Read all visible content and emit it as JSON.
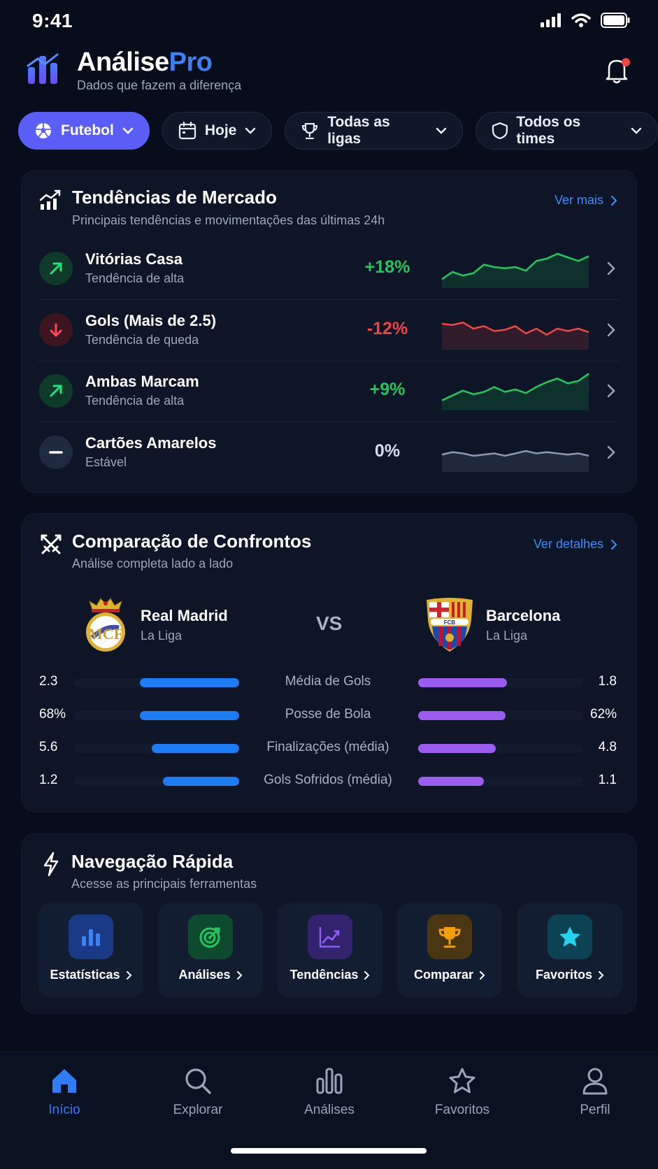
{
  "status_bar": {
    "time": "9:41"
  },
  "header": {
    "brand_main": "Análise",
    "brand_accent": "Pro",
    "tagline": "Dados que fazem a diferença"
  },
  "filters": [
    {
      "label": "Futebol",
      "icon": "soccer-ball-icon",
      "active": true
    },
    {
      "label": "Hoje",
      "icon": "calendar-icon"
    },
    {
      "label": "Todas as ligas",
      "icon": "trophy-icon"
    },
    {
      "label": "Todos os times",
      "icon": "shield-icon"
    }
  ],
  "trends": {
    "title": "Tendências de Mercado",
    "subtitle": "Principais tendências e movimentações das últimas 24h",
    "link": "Ver mais",
    "items": [
      {
        "name": "Vitórias Casa",
        "desc": "Tendência de alta",
        "value": "+18%",
        "direction": "up",
        "color": "#22c55e",
        "spark": [
          10,
          22,
          16,
          20,
          34,
          30,
          28,
          30,
          24,
          40,
          44,
          52,
          46,
          40,
          48
        ]
      },
      {
        "name": "Gols (Mais de 2.5)",
        "desc": "Tendência de queda",
        "value": "-12%",
        "direction": "down",
        "color": "#ef4444",
        "spark": [
          38,
          36,
          40,
          30,
          34,
          26,
          28,
          34,
          22,
          30,
          20,
          30,
          26,
          30,
          24
        ]
      },
      {
        "name": "Ambas Marcam",
        "desc": "Tendência de alta",
        "value": "+9%",
        "direction": "up",
        "color": "#22c55e",
        "spark": [
          12,
          20,
          28,
          22,
          26,
          34,
          26,
          30,
          24,
          34,
          42,
          48,
          40,
          44,
          56
        ]
      },
      {
        "name": "Cartões Amarelos",
        "desc": "Estável",
        "value": "0%",
        "direction": "flat",
        "color": "#8a97b1",
        "spark": [
          24,
          28,
          26,
          22,
          24,
          26,
          22,
          26,
          30,
          26,
          28,
          26,
          24,
          26,
          22
        ]
      }
    ]
  },
  "comparison": {
    "title": "Comparação de Confrontos",
    "subtitle": "Análise completa lado a lado",
    "link": "Ver detalhes",
    "vs": "VS",
    "home": {
      "name": "Real Madrid",
      "league": "La Liga"
    },
    "away": {
      "name": "Barcelona",
      "league": "La Liga"
    },
    "stats": [
      {
        "label": "Média de Gols",
        "home": "2.3",
        "away": "1.8",
        "home_pct": 0.6,
        "away_pct": 0.54
      },
      {
        "label": "Posse de Bola",
        "home": "68%",
        "away": "62%",
        "home_pct": 0.6,
        "away_pct": 0.53
      },
      {
        "label": "Finalizações (média)",
        "home": "5.6",
        "away": "4.8",
        "home_pct": 0.53,
        "away_pct": 0.47
      },
      {
        "label": "Gols Sofridos (média)",
        "home": "1.2",
        "away": "1.1",
        "home_pct": 0.46,
        "away_pct": 0.4
      }
    ]
  },
  "quick_nav": {
    "title": "Navegação Rápida",
    "subtitle": "Acesse as principais ferramentas",
    "items": [
      {
        "label": "Estatísticas",
        "icon": "bar-chart-icon",
        "color": "#3b82f6"
      },
      {
        "label": "Análises",
        "icon": "target-icon",
        "color": "#22c55e"
      },
      {
        "label": "Tendências",
        "icon": "trend-chart-icon",
        "color": "#8b5cf6"
      },
      {
        "label": "Comparar",
        "icon": "trophy-icon",
        "color": "#f59e0b"
      },
      {
        "label": "Favoritos",
        "icon": "star-icon",
        "color": "#22d3ee"
      }
    ]
  },
  "bottom_nav": [
    {
      "label": "Início",
      "icon": "home-icon",
      "active": true
    },
    {
      "label": "Explorar",
      "icon": "search-icon"
    },
    {
      "label": "Análises",
      "icon": "bar-chart-icon"
    },
    {
      "label": "Favoritos",
      "icon": "star-icon"
    },
    {
      "label": "Perfil",
      "icon": "user-icon"
    }
  ]
}
